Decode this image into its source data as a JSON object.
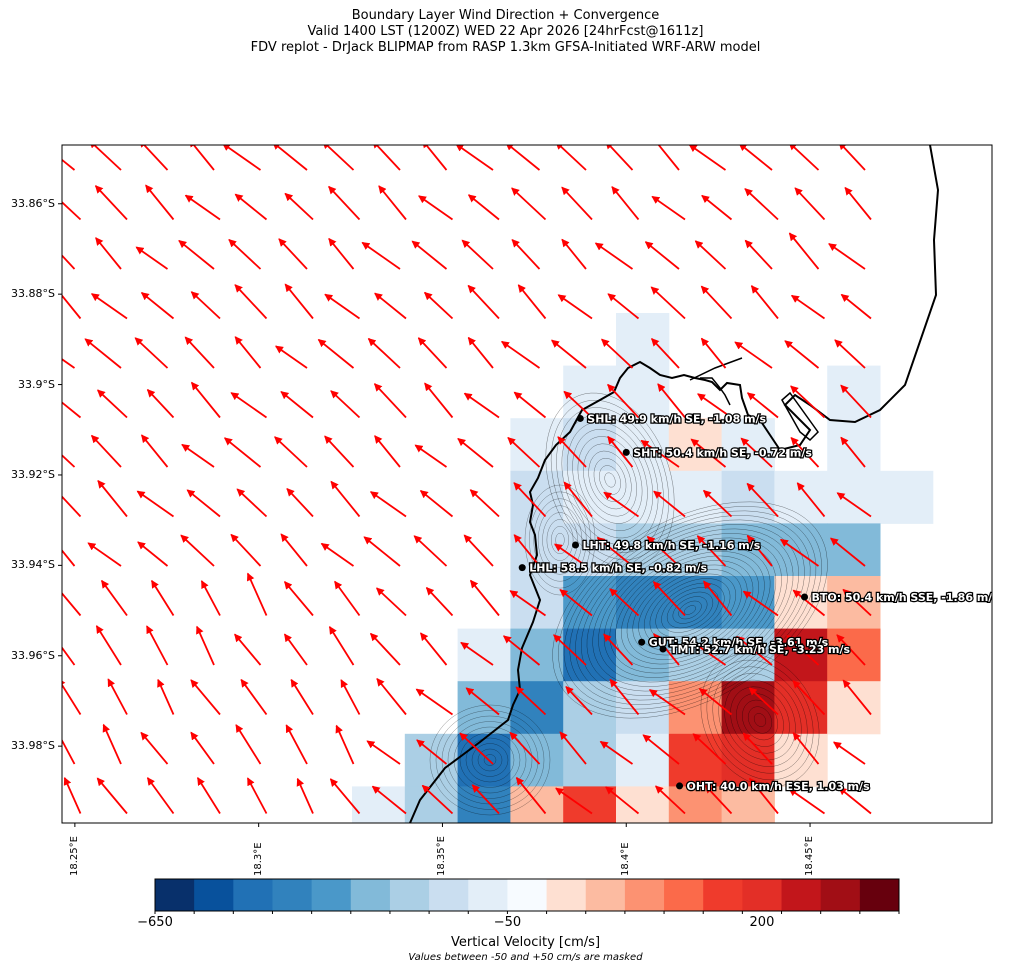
{
  "title": {
    "line1": "Boundary Layer Wind Direction + Convergence",
    "line2": "Valid 1400 LST (1200Z) WED 22 Apr 2026 [24hrFcst@1611z]",
    "line3": "FDV replot - DrJack BLIPMAP from RASP 1.3km GFSA-Initiated WRF-ARW model"
  },
  "map": {
    "lat_range": [
      -33.997,
      -33.847
    ],
    "lon_range": [
      18.2465,
      18.4995
    ],
    "lat_ticks": [
      "33.86°S",
      "33.88°S",
      "33.9°S",
      "33.92°S",
      "33.94°S",
      "33.96°S",
      "33.98°S"
    ],
    "lat_tick_values": [
      -33.86,
      -33.88,
      -33.9,
      -33.92,
      -33.94,
      -33.96,
      -33.98
    ],
    "lon_ticks": [
      "18.25°E",
      "18.3°E",
      "18.35°E",
      "18.4°E",
      "18.45°E"
    ],
    "lon_tick_values": [
      18.25,
      18.3,
      18.35,
      18.4,
      18.45
    ],
    "wind_arrow_color": "#ff0000",
    "wind_direction": "SE",
    "stations": [
      {
        "code": "SHL",
        "label": "SHL: 49.9 km/h SE, -1.08 m/s",
        "lon": 18.3875,
        "lat": -33.9075
      },
      {
        "code": "SHT",
        "label": "SHT: 50.4 km/h SE, -0.72 m/s",
        "lon": 18.4,
        "lat": -33.915
      },
      {
        "code": "LHT",
        "label": "LHT: 49.8 km/h SE, -1.16 m/s",
        "lon": 18.3862,
        "lat": -33.9355
      },
      {
        "code": "LHL",
        "label": "LHL: 58.5 km/h SE, -0.82 m/s",
        "lon": 18.3717,
        "lat": -33.9405
      },
      {
        "code": "BTO",
        "label": "BTO: 50.4 km/h SSE, -1.86 m/s",
        "lon": 18.4485,
        "lat": -33.947
      },
      {
        "code": "GUT",
        "label": "GUT: 54.2 km/h SE, -3.61 m/s",
        "lon": 18.4042,
        "lat": -33.957
      },
      {
        "code": "TMT",
        "label": "TMT: 52.7 km/h SE, -3.23 m/s",
        "lon": 18.41,
        "lat": -33.9585
      },
      {
        "code": "OHT",
        "label": "OHT: 40.0 km/h ESE, 1.03 m/s",
        "lon": 18.4145,
        "lat": -33.9888
      }
    ]
  },
  "colorbar": {
    "label": "Vertical Velocity [cm/s]",
    "note": "Values between -50 and +50 cm/s are masked",
    "tick_labels": [
      "−650",
      "−50",
      "200"
    ],
    "tick_values": [
      -650,
      -50,
      200
    ],
    "colors": [
      "#08306b",
      "#08519c",
      "#2171b5",
      "#3182bd",
      "#4a98c9",
      "#82bad9",
      "#abcfe5",
      "#cadef0",
      "#e3eef8",
      "#f7fbff",
      "#fee0d2",
      "#fcbba1",
      "#fc9272",
      "#fb6a4a",
      "#ef3b2c",
      "#e32f27",
      "#c2161b",
      "#a10e15",
      "#67000d"
    ]
  }
}
